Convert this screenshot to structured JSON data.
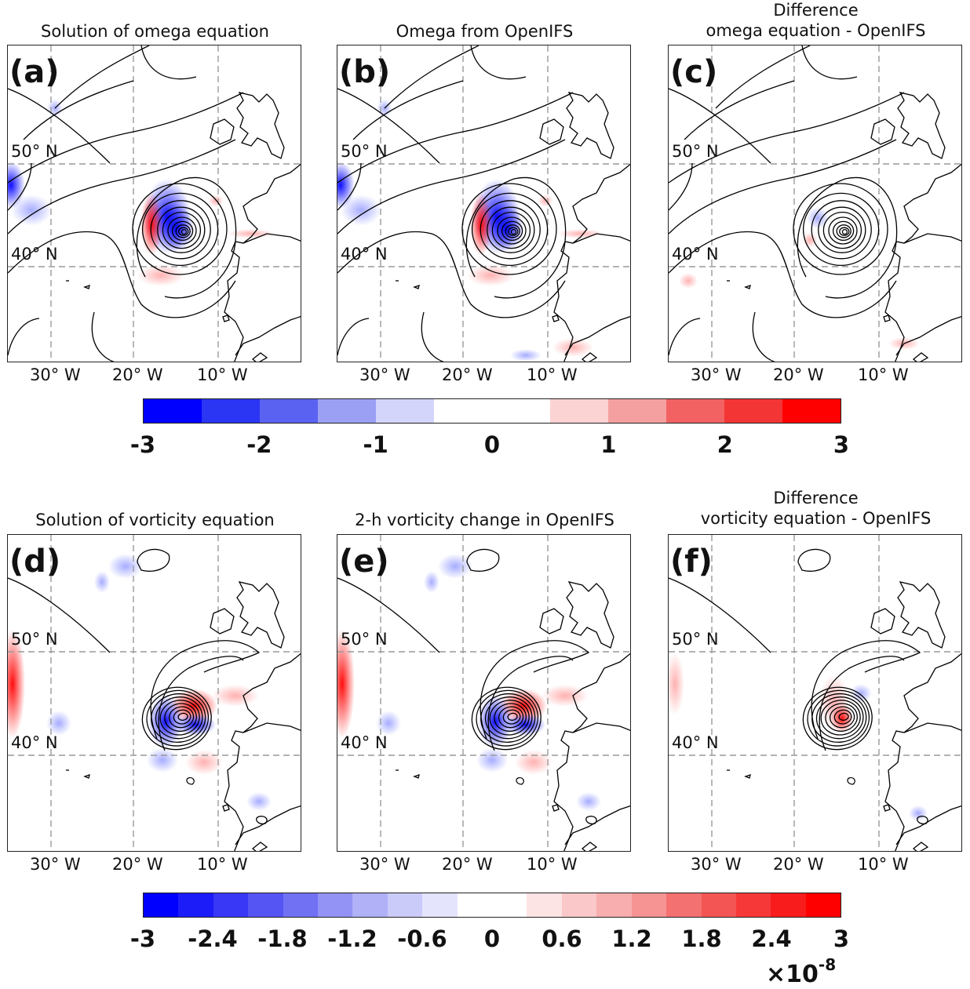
{
  "panels": [
    {
      "id": "a",
      "label": "(a)",
      "title_lines": [
        "Solution of omega equation"
      ]
    },
    {
      "id": "b",
      "label": "(b)",
      "title_lines": [
        "Omega from OpenIFS"
      ]
    },
    {
      "id": "c",
      "label": "(c)",
      "title_lines": [
        "Difference",
        "omega equation  - OpenIFS"
      ]
    },
    {
      "id": "d",
      "label": "(d)",
      "title_lines": [
        "Solution of vorticity equation"
      ]
    },
    {
      "id": "e",
      "label": "(e)",
      "title_lines": [
        "2-h vorticity change in OpenIFS"
      ]
    },
    {
      "id": "f",
      "label": "(f)",
      "title_lines": [
        "Difference",
        "vorticity equation - OpenIFS"
      ]
    }
  ],
  "lat_labels": [
    "50° N",
    "40° N"
  ],
  "lon_labels": [
    "30° W",
    "20° W",
    "10° W"
  ],
  "colorbar_top": {
    "ticks": [
      "-3",
      "-2",
      "-1",
      "0",
      "1",
      "2",
      "3"
    ],
    "colors": [
      "#0000ff",
      "#2b35f4",
      "#5a62f2",
      "#9ba0f5",
      "#d3d5fb",
      "#ffffff",
      "#ffffff",
      "#fbd3d3",
      "#f5a0a0",
      "#f26262",
      "#f43535",
      "#ff0000"
    ]
  },
  "colorbar_bottom": {
    "ticks": [
      "-3",
      "-2.4",
      "-1.8",
      "-1.2",
      "-0.6",
      "0",
      "0.6",
      "1.2",
      "1.8",
      "2.4",
      "3"
    ],
    "colors": [
      "#0000ff",
      "#1c1cf9",
      "#3838f6",
      "#5555f3",
      "#7171f4",
      "#9393f6",
      "#b1b1f8",
      "#cbcbfa",
      "#e4e4fc",
      "#ffffff",
      "#ffffff",
      "#fce4e4",
      "#fac8c8",
      "#f8aeae",
      "#f69393",
      "#f47171",
      "#f35555",
      "#f63838",
      "#f91c1c",
      "#ff0000"
    ],
    "exponent_base": "×10",
    "exponent": "-8"
  }
}
